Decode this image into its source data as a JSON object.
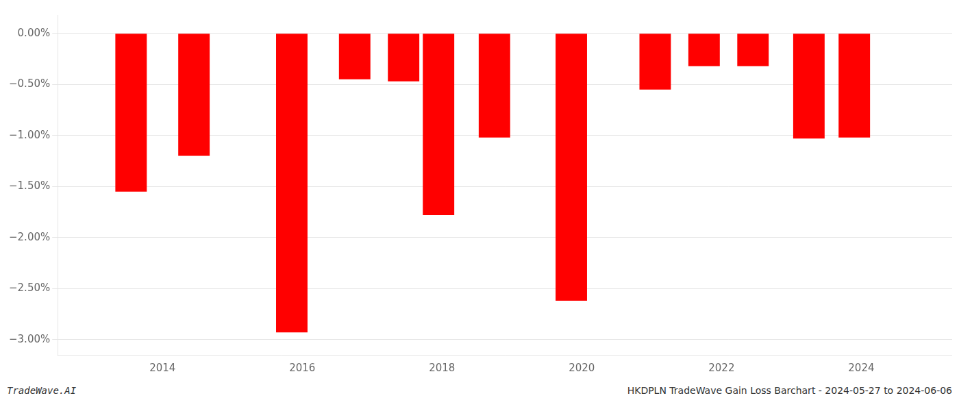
{
  "chart_data": {
    "type": "bar",
    "x": [
      2013.55,
      2014.45,
      2015.85,
      2016.75,
      2017.45,
      2017.95,
      2018.75,
      2019.85,
      2021.05,
      2021.75,
      2022.45,
      2023.25,
      2023.9
    ],
    "values": [
      -1.55,
      -1.2,
      -2.93,
      -0.45,
      -0.47,
      -1.78,
      -1.02,
      -2.62,
      -0.55,
      -0.32,
      -0.32,
      -1.03,
      -1.02
    ],
    "color": "#ff0000",
    "xlim": [
      2012.5,
      2025.3
    ],
    "xticks": [
      2014,
      2016,
      2018,
      2020,
      2022,
      2024
    ],
    "ylim": [
      -3.15,
      0.18
    ],
    "yticks": [
      {
        "value": 0.0,
        "label": "0.00%"
      },
      {
        "value": -0.5,
        "label": "−0.50%"
      },
      {
        "value": -1.0,
        "label": "−1.00%"
      },
      {
        "value": -1.5,
        "label": "−1.50%"
      },
      {
        "value": -2.0,
        "label": "−2.00%"
      },
      {
        "value": -2.5,
        "label": "−2.50%"
      },
      {
        "value": -3.0,
        "label": "−3.00%"
      }
    ],
    "grid": "y",
    "annotations": [
      "TradeWave.AI",
      "HKDPLN TradeWave Gain Loss Barchart - 2024-05-27 to 2024-06-06"
    ]
  }
}
